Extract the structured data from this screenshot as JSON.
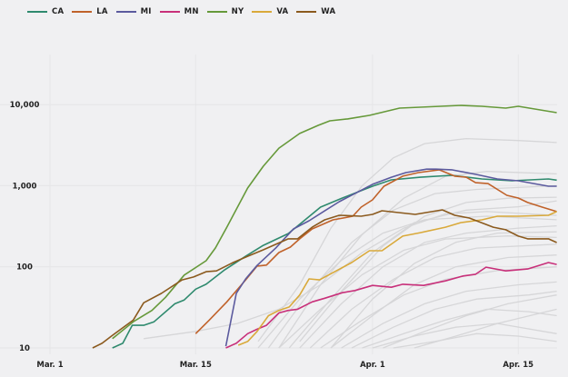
{
  "chart_data": {
    "type": "line",
    "title": "",
    "xlabel": "",
    "ylabel": "",
    "yscale": "log",
    "ylim": [
      10,
      12000
    ],
    "x_unit": "days since Mar. 1",
    "xlim": [
      0,
      48.7
    ],
    "grid": true,
    "legend_placement": "top-left",
    "y_ticks": [
      {
        "value": 10,
        "label": "10"
      },
      {
        "value": 100,
        "label": "100"
      },
      {
        "value": 1000,
        "label": "1,000"
      },
      {
        "value": 10000,
        "label": "10,000"
      }
    ],
    "x_ticks": [
      {
        "value": 0,
        "label": "Mar. 1"
      },
      {
        "value": 14,
        "label": "Mar. 15"
      },
      {
        "value": 31,
        "label": "Apr. 1"
      },
      {
        "value": 45,
        "label": "Apr. 15"
      }
    ],
    "series": [
      {
        "name": "CA",
        "color": "#2f8a6e",
        "points": [
          [
            6,
            10
          ],
          [
            7,
            11.4
          ],
          [
            7.9,
            19
          ],
          [
            9,
            19
          ],
          [
            10,
            21
          ],
          [
            12,
            35
          ],
          [
            12.9,
            39
          ],
          [
            14,
            53
          ],
          [
            15,
            61
          ],
          [
            16.8,
            92
          ],
          [
            18.8,
            135
          ],
          [
            20.5,
            184
          ],
          [
            22.9,
            257
          ],
          [
            24,
            334
          ],
          [
            26,
            544
          ],
          [
            28.1,
            705
          ],
          [
            31,
            985
          ],
          [
            32.8,
            1180
          ],
          [
            35.6,
            1270
          ],
          [
            38.6,
            1340
          ],
          [
            41.5,
            1210
          ],
          [
            44.4,
            1150
          ],
          [
            47.9,
            1210
          ],
          [
            48.7,
            1170
          ]
        ]
      },
      {
        "name": "LA",
        "color": "#c0622a",
        "points": [
          [
            14,
            15
          ],
          [
            15.3,
            22
          ],
          [
            17,
            37
          ],
          [
            18.8,
            69
          ],
          [
            19.9,
            102
          ],
          [
            20.8,
            105
          ],
          [
            22,
            150
          ],
          [
            23.1,
            175
          ],
          [
            24,
            221
          ],
          [
            25.2,
            293
          ],
          [
            27.2,
            379
          ],
          [
            29.1,
            421
          ],
          [
            29.9,
            544
          ],
          [
            31,
            668
          ],
          [
            32.1,
            985
          ],
          [
            33.9,
            1310
          ],
          [
            35.4,
            1450
          ],
          [
            37.4,
            1570
          ],
          [
            38.9,
            1310
          ],
          [
            40,
            1270
          ],
          [
            40.9,
            1090
          ],
          [
            42.1,
            1060
          ],
          [
            43.9,
            760
          ],
          [
            45,
            705
          ],
          [
            45.9,
            620
          ],
          [
            47.3,
            544
          ],
          [
            48.7,
            479
          ]
        ]
      },
      {
        "name": "MI",
        "color": "#5b5a9e",
        "points": [
          [
            16.9,
            10.5
          ],
          [
            17.9,
            47
          ],
          [
            18.8,
            71
          ],
          [
            19.9,
            104
          ],
          [
            21.7,
            171
          ],
          [
            23.4,
            293
          ],
          [
            24.9,
            370
          ],
          [
            26.4,
            490
          ],
          [
            27.8,
            635
          ],
          [
            31,
            1040
          ],
          [
            32.8,
            1270
          ],
          [
            34.2,
            1450
          ],
          [
            36.2,
            1600
          ],
          [
            37.1,
            1600
          ],
          [
            38.6,
            1570
          ],
          [
            40.9,
            1380
          ],
          [
            43,
            1210
          ],
          [
            45,
            1150
          ],
          [
            47.9,
            985
          ],
          [
            48.7,
            985
          ]
        ]
      },
      {
        "name": "MN",
        "color": "#c8307a",
        "points": [
          [
            16.9,
            10
          ],
          [
            17.9,
            11.4
          ],
          [
            19,
            15
          ],
          [
            19.9,
            17
          ],
          [
            20.8,
            19
          ],
          [
            22,
            27
          ],
          [
            22.9,
            29
          ],
          [
            23.8,
            30
          ],
          [
            25.2,
            37
          ],
          [
            26.4,
            41
          ],
          [
            28.1,
            48
          ],
          [
            29.3,
            51
          ],
          [
            31,
            59
          ],
          [
            32.8,
            56
          ],
          [
            33.9,
            61
          ],
          [
            35.9,
            59
          ],
          [
            38,
            67
          ],
          [
            39.7,
            77
          ],
          [
            40.9,
            81
          ],
          [
            41.9,
            99
          ],
          [
            43.8,
            89
          ],
          [
            45.9,
            94
          ],
          [
            47.9,
            113
          ],
          [
            48.7,
            107
          ]
        ]
      },
      {
        "name": "NY",
        "color": "#66993a",
        "points": [
          [
            6,
            13
          ],
          [
            8,
            21
          ],
          [
            9.8,
            29
          ],
          [
            11.1,
            42
          ],
          [
            12.9,
            79
          ],
          [
            15,
            119
          ],
          [
            15.9,
            171
          ],
          [
            17,
            308
          ],
          [
            19,
            935
          ],
          [
            20.5,
            1738
          ],
          [
            22,
            2900
          ],
          [
            24,
            4400
          ],
          [
            25.8,
            5550
          ],
          [
            26.9,
            6300
          ],
          [
            28.6,
            6650
          ],
          [
            30.7,
            7360
          ],
          [
            33.6,
            9040
          ],
          [
            39.5,
            9770
          ],
          [
            41.5,
            9520
          ],
          [
            43.8,
            9040
          ],
          [
            45,
            9520
          ],
          [
            48.7,
            7940
          ]
        ]
      },
      {
        "name": "VA",
        "color": "#d9a93a",
        "points": [
          [
            18.1,
            10.8
          ],
          [
            19,
            12
          ],
          [
            19.9,
            16
          ],
          [
            21,
            25
          ],
          [
            22,
            29
          ],
          [
            23,
            32
          ],
          [
            24,
            45
          ],
          [
            24.9,
            71
          ],
          [
            25.9,
            69
          ],
          [
            26.9,
            81
          ],
          [
            29,
            113
          ],
          [
            30.7,
            158
          ],
          [
            31.9,
            158
          ],
          [
            33.9,
            239
          ],
          [
            35.6,
            264
          ],
          [
            38,
            308
          ],
          [
            39.5,
            351
          ],
          [
            41.5,
            379
          ],
          [
            43,
            421
          ],
          [
            45,
            421
          ],
          [
            47.9,
            431
          ],
          [
            48.7,
            479
          ]
        ]
      },
      {
        "name": "WA",
        "color": "#8b5a1e",
        "points": [
          [
            4.1,
            10
          ],
          [
            5,
            11.4
          ],
          [
            5.9,
            14
          ],
          [
            8,
            22
          ],
          [
            9,
            36
          ],
          [
            10.7,
            47
          ],
          [
            12.7,
            69
          ],
          [
            13.8,
            75
          ],
          [
            15,
            87
          ],
          [
            16,
            89
          ],
          [
            17.6,
            113
          ],
          [
            19,
            135
          ],
          [
            20.5,
            162
          ],
          [
            22.9,
            221
          ],
          [
            23.8,
            221
          ],
          [
            25.2,
            308
          ],
          [
            26.4,
            379
          ],
          [
            27.8,
            431
          ],
          [
            29.9,
            421
          ],
          [
            31,
            443
          ],
          [
            31.9,
            491
          ],
          [
            35.1,
            443
          ],
          [
            37.7,
            504
          ],
          [
            38.9,
            431
          ],
          [
            40.3,
            399
          ],
          [
            42.6,
            308
          ],
          [
            43.8,
            286
          ],
          [
            45,
            239
          ],
          [
            45.9,
            221
          ],
          [
            47.9,
            221
          ],
          [
            48.7,
            199
          ]
        ]
      }
    ],
    "other_series_color": "#d6d6d8",
    "other_series": [
      [
        [
          20,
          12
        ],
        [
          24,
          60
        ],
        [
          27,
          300
        ],
        [
          30,
          1000
        ],
        [
          33,
          2200
        ],
        [
          36,
          3300
        ],
        [
          40,
          3800
        ],
        [
          45,
          3600
        ],
        [
          48.7,
          3400
        ]
      ],
      [
        [
          22,
          10
        ],
        [
          26,
          60
        ],
        [
          30,
          250
        ],
        [
          34,
          700
        ],
        [
          38,
          1300
        ],
        [
          42,
          1500
        ],
        [
          48.7,
          1400
        ]
      ],
      [
        [
          21,
          10
        ],
        [
          25,
          50
        ],
        [
          29,
          200
        ],
        [
          33,
          500
        ],
        [
          37,
          800
        ],
        [
          41,
          900
        ],
        [
          48.7,
          1000
        ]
      ],
      [
        [
          23,
          10
        ],
        [
          27,
          40
        ],
        [
          31,
          150
        ],
        [
          35,
          350
        ],
        [
          40,
          500
        ],
        [
          45,
          550
        ],
        [
          48.7,
          650
        ]
      ],
      [
        [
          20,
          10
        ],
        [
          24,
          40
        ],
        [
          28,
          120
        ],
        [
          32,
          260
        ],
        [
          36,
          380
        ],
        [
          42,
          420
        ],
        [
          48.7,
          380
        ]
      ],
      [
        [
          24,
          10
        ],
        [
          28,
          35
        ],
        [
          32,
          100
        ],
        [
          36,
          200
        ],
        [
          40,
          260
        ],
        [
          45,
          300
        ],
        [
          48.7,
          320
        ]
      ],
      [
        [
          22,
          10
        ],
        [
          26,
          30
        ],
        [
          30,
          80
        ],
        [
          34,
          160
        ],
        [
          38,
          220
        ],
        [
          44,
          240
        ],
        [
          48.7,
          230
        ]
      ],
      [
        [
          25,
          10
        ],
        [
          29,
          30
        ],
        [
          33,
          70
        ],
        [
          37,
          130
        ],
        [
          41,
          170
        ],
        [
          48.7,
          190
        ]
      ],
      [
        [
          27,
          10
        ],
        [
          31,
          25
        ],
        [
          35,
          60
        ],
        [
          39,
          100
        ],
        [
          44,
          130
        ],
        [
          48.7,
          140
        ]
      ],
      [
        [
          26,
          10
        ],
        [
          30,
          22
        ],
        [
          34,
          45
        ],
        [
          38,
          70
        ],
        [
          43,
          90
        ],
        [
          48.7,
          100
        ]
      ],
      [
        [
          28,
          10
        ],
        [
          32,
          20
        ],
        [
          36,
          35
        ],
        [
          40,
          50
        ],
        [
          45,
          60
        ],
        [
          48.7,
          65
        ]
      ],
      [
        [
          29,
          10
        ],
        [
          33,
          18
        ],
        [
          37,
          30
        ],
        [
          41,
          40
        ],
        [
          46,
          45
        ],
        [
          48.7,
          50
        ]
      ],
      [
        [
          30,
          10
        ],
        [
          34,
          15
        ],
        [
          38,
          22
        ],
        [
          42,
          30
        ],
        [
          46,
          28
        ],
        [
          48.7,
          25
        ]
      ],
      [
        [
          31,
          10
        ],
        [
          35,
          14
        ],
        [
          39,
          18
        ],
        [
          43,
          20
        ],
        [
          48.7,
          15
        ]
      ],
      [
        [
          9,
          13
        ],
        [
          14,
          16
        ],
        [
          18,
          20
        ],
        [
          22,
          30
        ],
        [
          26,
          60
        ],
        [
          30,
          150
        ],
        [
          34,
          300
        ],
        [
          38,
          450
        ],
        [
          42,
          480
        ],
        [
          48.7,
          430
        ]
      ],
      [
        [
          32,
          10
        ],
        [
          36,
          16
        ],
        [
          40,
          25
        ],
        [
          44,
          35
        ],
        [
          48.7,
          45
        ]
      ],
      [
        [
          33,
          10
        ],
        [
          37,
          12
        ],
        [
          41,
          15
        ],
        [
          45,
          14
        ],
        [
          48.7,
          12
        ]
      ],
      [
        [
          24,
          12
        ],
        [
          28,
          50
        ],
        [
          32,
          180
        ],
        [
          36,
          420
        ],
        [
          40,
          620
        ],
        [
          44,
          700
        ],
        [
          48.7,
          720
        ]
      ],
      [
        [
          27,
          10
        ],
        [
          31,
          40
        ],
        [
          35,
          110
        ],
        [
          39,
          200
        ],
        [
          43,
          260
        ],
        [
          48.7,
          270
        ]
      ],
      [
        [
          35,
          10
        ],
        [
          39,
          14
        ],
        [
          43,
          20
        ],
        [
          48.7,
          30
        ]
      ]
    ]
  }
}
